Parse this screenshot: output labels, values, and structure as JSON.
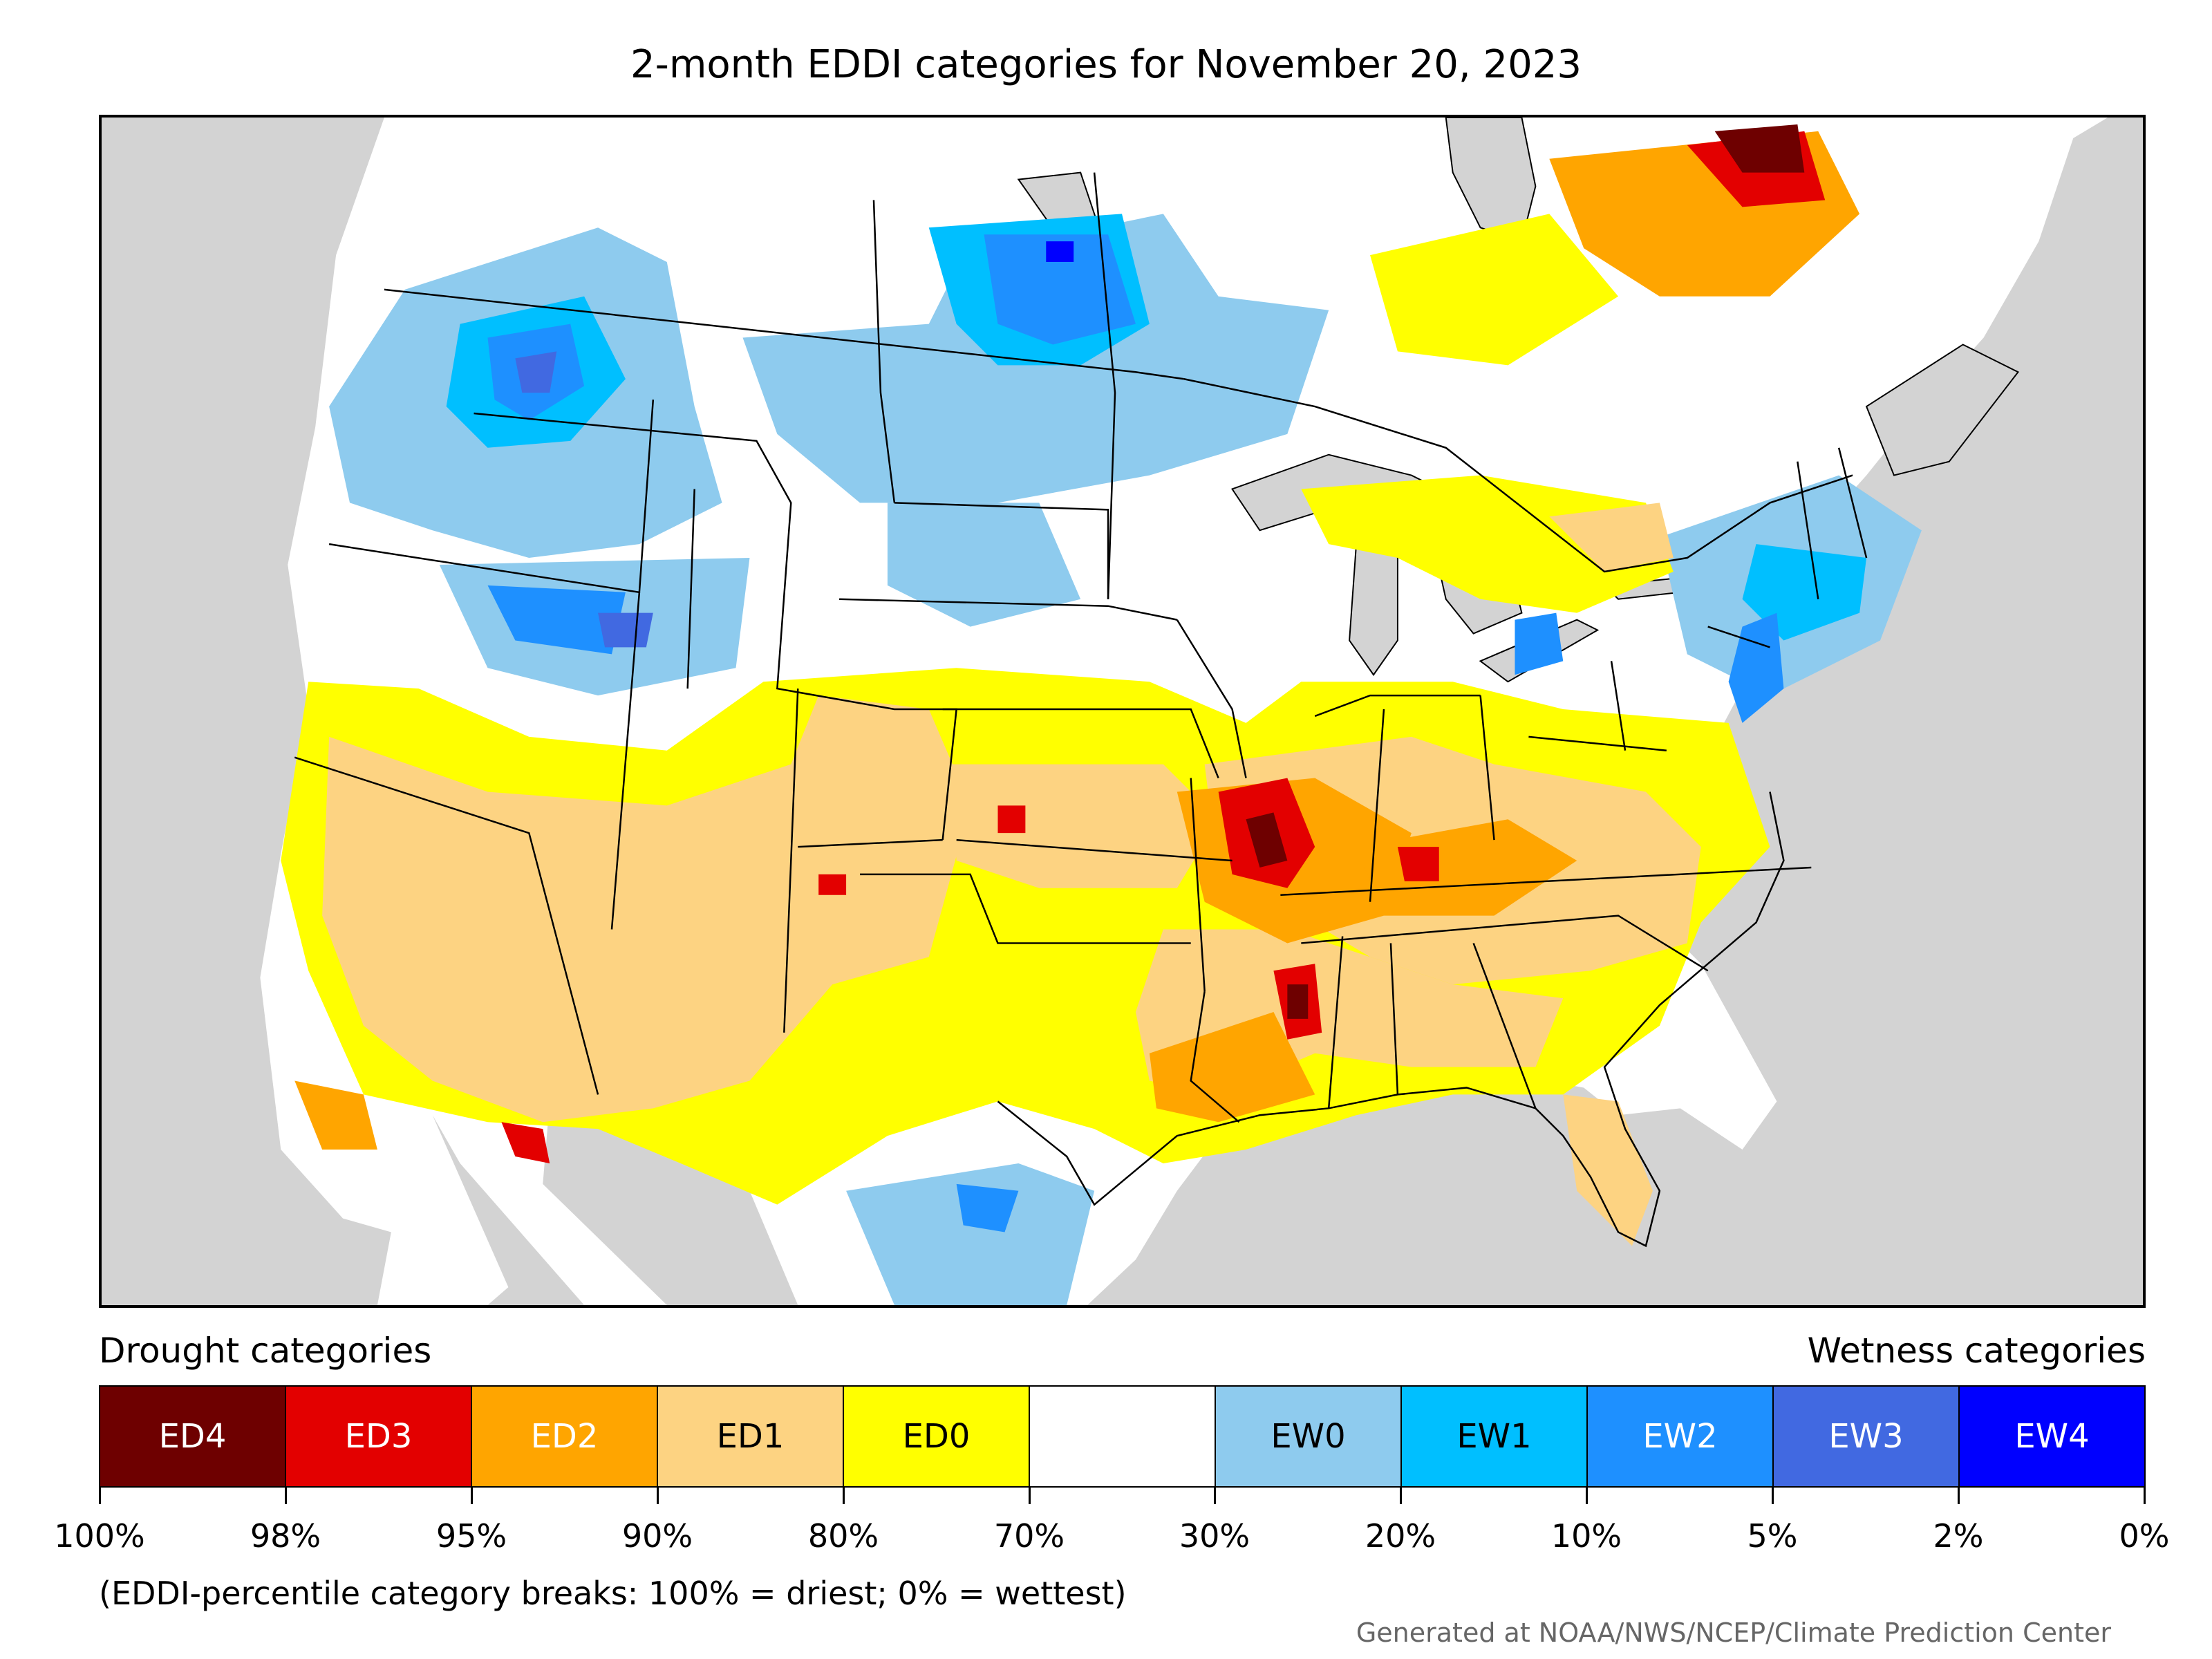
{
  "title": "2-month EDDI categories for November 20, 2023",
  "legend": {
    "drought_title": "Drought categories",
    "wetness_title": "Wetness categories",
    "categories": [
      {
        "label": "ED4",
        "color": "#6e0000",
        "text_color": "#ffffff"
      },
      {
        "label": "ED3",
        "color": "#e30000",
        "text_color": "#ffffff"
      },
      {
        "label": "ED2",
        "color": "#ffa500",
        "text_color": "#ffffff"
      },
      {
        "label": "ED1",
        "color": "#fdd382",
        "text_color": "#000000"
      },
      {
        "label": "ED0",
        "color": "#ffff00",
        "text_color": "#000000"
      },
      {
        "label": "",
        "color": "#ffffff",
        "text_color": "#000000"
      },
      {
        "label": "EW0",
        "color": "#8ecbee",
        "text_color": "#000000"
      },
      {
        "label": "EW1",
        "color": "#00bfff",
        "text_color": "#000000"
      },
      {
        "label": "EW2",
        "color": "#1e90ff",
        "text_color": "#ffffff"
      },
      {
        "label": "EW3",
        "color": "#4169e1",
        "text_color": "#ffffff"
      },
      {
        "label": "EW4",
        "color": "#0000ff",
        "text_color": "#ffffff"
      }
    ],
    "tick_labels": [
      "100%",
      "98%",
      "95%",
      "90%",
      "80%",
      "70%",
      "30%",
      "20%",
      "10%",
      "5%",
      "2%",
      "0%"
    ],
    "note": "(EDDI-percentile category breaks: 100% = driest; 0% = wettest)"
  },
  "credit": "Generated at NOAA/NWS/NCEP/Climate Prediction Center",
  "colors": {
    "ocean": "#d3d3d3",
    "land": "#ffffff",
    "borders": "#000000"
  }
}
